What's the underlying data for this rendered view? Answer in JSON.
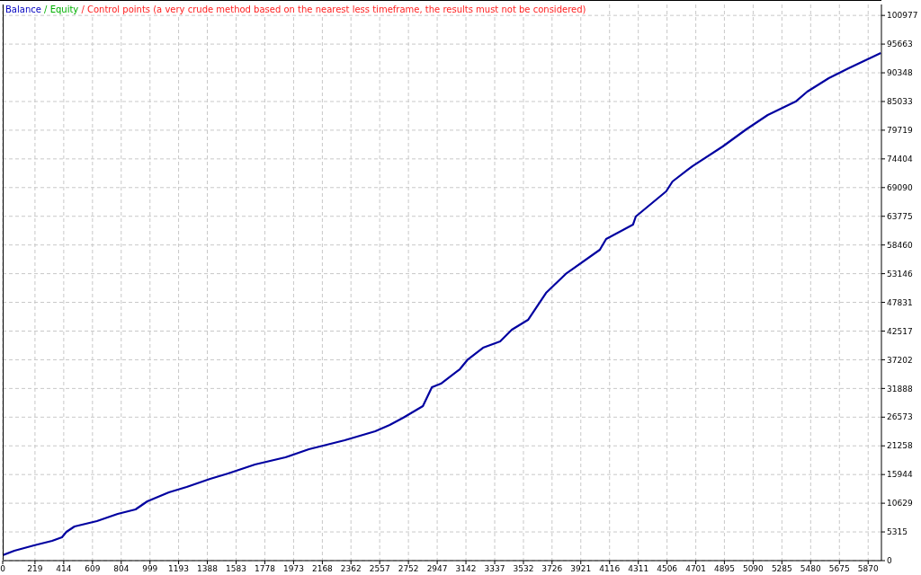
{
  "chart_data": {
    "type": "line",
    "title": "Balance / Equity / Control points (a very crude method based on the nearest less timeframe, the results must not be considered)",
    "x": [
      0,
      79,
      213,
      335,
      402,
      432,
      487,
      639,
      780,
      901,
      981,
      1127,
      1248,
      1407,
      1529,
      1711,
      1918,
      2077,
      2320,
      2527,
      2625,
      2716,
      2850,
      2911,
      2972,
      3100,
      3155,
      3258,
      3374,
      3453,
      3563,
      3685,
      3825,
      4050,
      4093,
      4275,
      4294,
      4500,
      4543,
      4677,
      4884,
      5043,
      5189,
      5378,
      5457,
      5603,
      5737,
      5956
    ],
    "series": [
      {
        "color": "#0000a0",
        "values": [
          1000,
          1830,
          2830,
          3660,
          4330,
          5320,
          6320,
          7320,
          8650,
          9480,
          10980,
          12650,
          13640,
          15140,
          16140,
          17800,
          19130,
          20630,
          22300,
          23960,
          25120,
          26460,
          28620,
          32110,
          32780,
          35440,
          37270,
          39430,
          40600,
          42760,
          44590,
          49580,
          53240,
          57570,
          59570,
          62230,
          63730,
          68390,
          70220,
          73040,
          76710,
          79870,
          82530,
          85020,
          86860,
          89350,
          91180,
          94010
        ]
      }
    ],
    "xlim": [
      0,
      5960
    ],
    "xticks": [
      0,
      219,
      414,
      609,
      804,
      999,
      1193,
      1388,
      1583,
      1778,
      1973,
      2168,
      2362,
      2557,
      2752,
      2947,
      3142,
      3337,
      3532,
      3726,
      3921,
      4116,
      4311,
      4506,
      4701,
      4895,
      5090,
      5285,
      5480,
      5675,
      5870
    ],
    "ylim": [
      0,
      103000
    ],
    "yticks": [
      0,
      5315,
      10629,
      15944,
      21258,
      26573,
      31888,
      37202,
      42517,
      47831,
      53146,
      58460,
      63775,
      69090,
      74404,
      79719,
      85033,
      90348,
      95663,
      100977
    ],
    "grid": true,
    "line_style": "solid",
    "marker": "none"
  }
}
